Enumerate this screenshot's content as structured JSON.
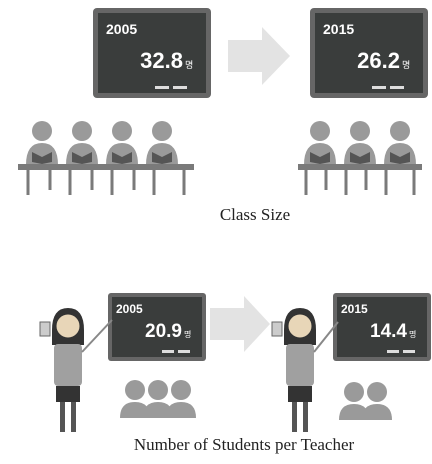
{
  "panels": [
    {
      "caption": "Class Size",
      "boards": [
        {
          "year": 2005,
          "value": 32.8,
          "unit": "명"
        },
        {
          "year": 2015,
          "value": 26.2,
          "unit": "명"
        }
      ]
    },
    {
      "caption": "Number of Students per Teacher",
      "boards": [
        {
          "year": 2005,
          "value": 20.9,
          "unit": "명"
        },
        {
          "year": 2015,
          "value": 14.4,
          "unit": "명"
        }
      ]
    }
  ]
}
